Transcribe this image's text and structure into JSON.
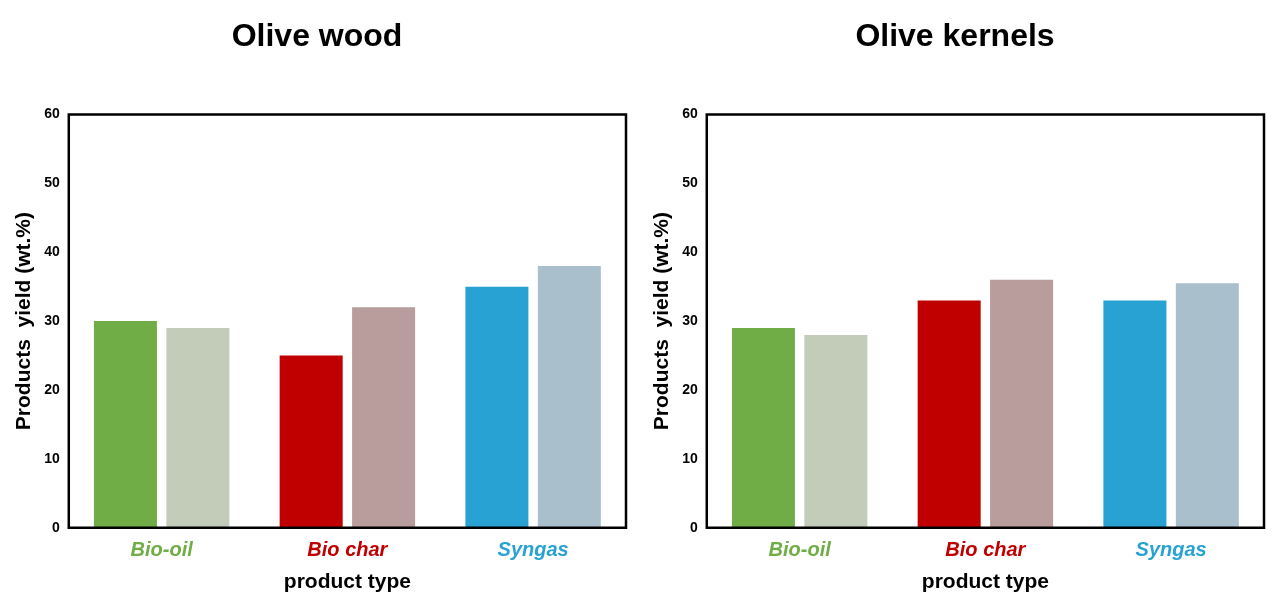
{
  "chart_data": [
    {
      "type": "bar",
      "title": "Olive wood",
      "xlabel": "product type",
      "ylabel": "Products  yield (wt.%)",
      "categories": [
        "Bio-oil",
        "Bio char",
        "Syngas"
      ],
      "ylim": [
        0,
        60
      ],
      "yticks": [
        0,
        10,
        20,
        30,
        40,
        50,
        60
      ],
      "series": [
        {
          "colors": [
            "#70ad47",
            "#c00000",
            "#27a2d2"
          ],
          "values": [
            30,
            25,
            35
          ]
        },
        {
          "colors": [
            "#c3cbb9",
            "#b99c9c",
            "#a9bfcc"
          ],
          "values": [
            29,
            32,
            38
          ]
        }
      ]
    },
    {
      "type": "bar",
      "title": "Olive kernels",
      "xlabel": "product type",
      "ylabel": "Products  yield (wt.%)",
      "categories": [
        "Bio-oil",
        "Bio char",
        "Syngas"
      ],
      "ylim": [
        0,
        60
      ],
      "yticks": [
        0,
        10,
        20,
        30,
        40,
        50,
        60
      ],
      "series": [
        {
          "colors": [
            "#70ad47",
            "#c00000",
            "#27a2d2"
          ],
          "values": [
            29,
            33,
            33
          ]
        },
        {
          "colors": [
            "#c3cbb9",
            "#b99c9c",
            "#a9bfcc"
          ],
          "values": [
            28,
            36,
            35.5
          ]
        }
      ]
    }
  ]
}
